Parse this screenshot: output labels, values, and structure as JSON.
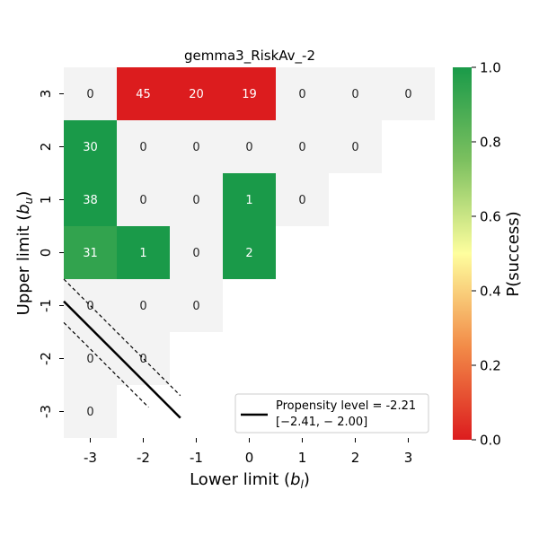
{
  "chart_data": {
    "type": "heatmap",
    "title": "gemma3_RiskAv_-2",
    "xlabel_main": "Lower limit (",
    "xlabel_sym": "b",
    "xlabel_sub": "l",
    "xlabel_close": ")",
    "ylabel_main": "Upper limit (",
    "ylabel_sym": "b",
    "ylabel_sub": "u",
    "ylabel_close": ")",
    "x_categories": [
      "-3",
      "-2",
      "-1",
      "0",
      "1",
      "2",
      "3"
    ],
    "y_categories": [
      "3",
      "2",
      "1",
      "0",
      "-1",
      "-2",
      "-3"
    ],
    "cells": [
      {
        "x": "-3",
        "y": "3",
        "count": "0",
        "p": null
      },
      {
        "x": "-2",
        "y": "3",
        "count": "45",
        "p": 0.0
      },
      {
        "x": "-1",
        "y": "3",
        "count": "20",
        "p": 0.0
      },
      {
        "x": "0",
        "y": "3",
        "count": "19",
        "p": 0.0
      },
      {
        "x": "1",
        "y": "3",
        "count": "0",
        "p": null
      },
      {
        "x": "2",
        "y": "3",
        "count": "0",
        "p": null
      },
      {
        "x": "3",
        "y": "3",
        "count": "0",
        "p": null
      },
      {
        "x": "-3",
        "y": "2",
        "count": "30",
        "p": 1.0
      },
      {
        "x": "-2",
        "y": "2",
        "count": "0",
        "p": null
      },
      {
        "x": "-1",
        "y": "2",
        "count": "0",
        "p": null
      },
      {
        "x": "0",
        "y": "2",
        "count": "0",
        "p": null
      },
      {
        "x": "1",
        "y": "2",
        "count": "0",
        "p": null
      },
      {
        "x": "2",
        "y": "2",
        "count": "0",
        "p": null
      },
      {
        "x": "-3",
        "y": "1",
        "count": "38",
        "p": 1.0
      },
      {
        "x": "-2",
        "y": "1",
        "count": "0",
        "p": null
      },
      {
        "x": "-1",
        "y": "1",
        "count": "0",
        "p": null
      },
      {
        "x": "0",
        "y": "1",
        "count": "1",
        "p": 1.0
      },
      {
        "x": "1",
        "y": "1",
        "count": "0",
        "p": null
      },
      {
        "x": "-3",
        "y": "0",
        "count": "31",
        "p": 0.94
      },
      {
        "x": "-2",
        "y": "0",
        "count": "1",
        "p": 1.0
      },
      {
        "x": "-1",
        "y": "0",
        "count": "0",
        "p": null
      },
      {
        "x": "0",
        "y": "0",
        "count": "2",
        "p": 1.0
      },
      {
        "x": "-3",
        "y": "-1",
        "count": "0",
        "p": null
      },
      {
        "x": "-2",
        "y": "-1",
        "count": "0",
        "p": null
      },
      {
        "x": "-1",
        "y": "-1",
        "count": "0",
        "p": null
      },
      {
        "x": "-3",
        "y": "-2",
        "count": "0",
        "p": null
      },
      {
        "x": "-2",
        "y": "-2",
        "count": "0",
        "p": null
      },
      {
        "x": "-3",
        "y": "-3",
        "count": "0",
        "p": null
      }
    ],
    "empty_cell_color": "#f3f3f3",
    "colormap": {
      "stops": [
        {
          "v": 0.0,
          "color": "#dc1c1e"
        },
        {
          "v": 0.25,
          "color": "#f28b48"
        },
        {
          "v": 0.5,
          "color": "#fefe9e"
        },
        {
          "v": 0.75,
          "color": "#7cc05f"
        },
        {
          "v": 1.0,
          "color": "#1a9a49"
        }
      ]
    },
    "colorbar": {
      "label": "P(success)",
      "ticks": [
        "0.0",
        "0.2",
        "0.4",
        "0.6",
        "0.8",
        "1.0"
      ],
      "range": [
        0,
        1
      ]
    },
    "propensity": {
      "level": -2.21,
      "lower": -2.41,
      "upper": -2.0,
      "legend_line1": "Propensity level = -2.21",
      "legend_line2": "[−2.41, − 2.00]"
    }
  }
}
